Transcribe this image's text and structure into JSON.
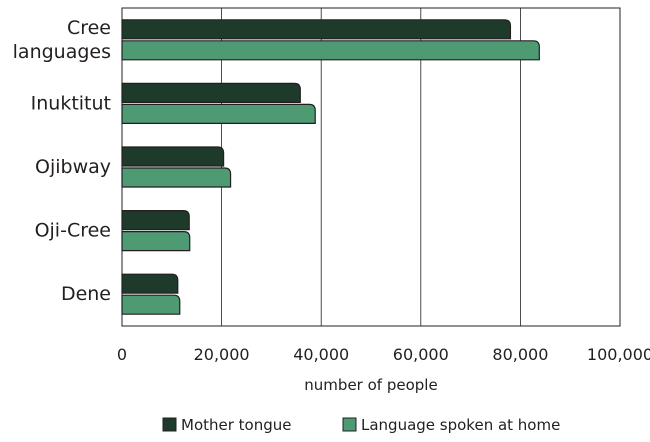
{
  "chart_data": {
    "type": "bar",
    "orientation": "horizontal",
    "categories": [
      [
        "Cree",
        "languages"
      ],
      [
        "Inuktitut"
      ],
      [
        "Ojibway"
      ],
      [
        "Oji-Cree"
      ],
      [
        "Dene"
      ]
    ],
    "series": [
      {
        "name": "Mother tongue",
        "values": [
          78000,
          35800,
          20400,
          13500,
          11200
        ],
        "color": "#1e3a2a"
      },
      {
        "name": "Language spoken at home",
        "values": [
          83800,
          38800,
          21800,
          13600,
          11600
        ],
        "color": "#4e9a73"
      }
    ],
    "xlabel": "number of people",
    "ylabel": "",
    "xlim": [
      0,
      100000
    ],
    "xticks": [
      0,
      20000,
      40000,
      60000,
      80000,
      100000
    ],
    "xtick_labels": [
      "0",
      "20,000",
      "40,000",
      "60,000",
      "80,000",
      "100,000"
    ],
    "grid": "vertical",
    "legend_position": "bottom"
  }
}
